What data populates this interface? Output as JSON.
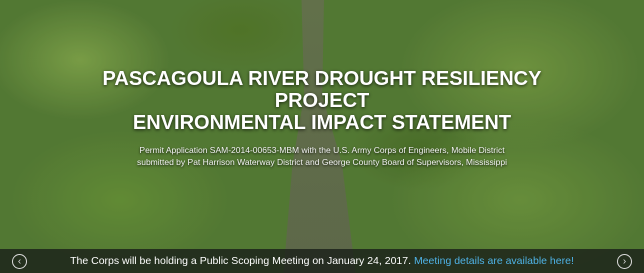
{
  "hero": {
    "title_lines": [
      "PASCAGOULA RIVER DROUGHT RESILIENCY",
      "PROJECT",
      "ENVIRONMENTAL IMPACT STATEMENT"
    ],
    "subtitle_lines": [
      "Permit Application SAM-2014-00653-MBM with the U.S. Army Corps of Engineers, Mobile District",
      "submitted by Pat Harrison Waterway District and George County Board of Supervisors, Mississippi"
    ]
  },
  "announcement": {
    "text": "The Corps will be holding a Public Scoping Meeting on January 24, 2017.",
    "link": "Meeting details are available here!"
  }
}
